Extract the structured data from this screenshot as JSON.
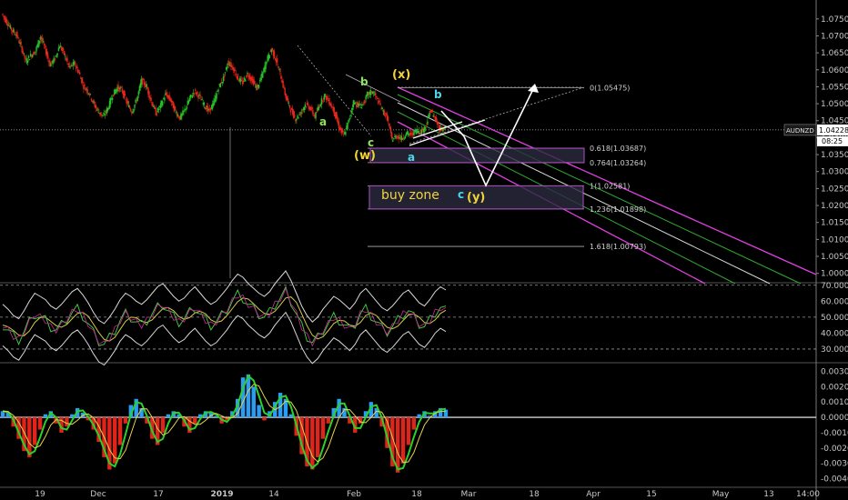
{
  "symbol": "AUDNZD",
  "price_label": "1.04228",
  "countdown_label": "08:25",
  "colors": {
    "background": "#000000",
    "bull": "#26c226",
    "bear": "#e8261c",
    "channel": "#e040e0",
    "inner_green": "#2fa82f",
    "fib_line": "#b0b0b0",
    "zone_fill": "#2a2a40",
    "zone_border": "#b050c0",
    "wave_yellow": "#f2d43a",
    "wave_green": "#8fe05a",
    "wave_cyan": "#4ad8e8"
  },
  "annotations": {
    "wave_x": "(x)",
    "wave_w": "(w)",
    "wave_y": "(y)",
    "wave_a1": "a",
    "wave_b1": "b",
    "wave_c1": "c",
    "wave_a2": "a",
    "wave_b2": "b",
    "wave_c2": "c",
    "buy_zone": "buy zone"
  },
  "chart_data": [
    {
      "type": "line",
      "title": "",
      "symbol": "AUDNZD",
      "ylim": [
        0.9975,
        1.0795
      ],
      "y_ticks": [
        "1.07500",
        "1.07000",
        "1.06500",
        "1.06000",
        "1.05500",
        "1.05000",
        "1.04500",
        "1.04000",
        "1.03500",
        "1.03000",
        "1.02500",
        "1.02000",
        "1.01500",
        "1.01000",
        "1.00500",
        "1.00000"
      ],
      "y_tick_values": [
        1.075,
        1.07,
        1.065,
        1.06,
        1.055,
        1.05,
        1.045,
        1.04,
        1.035,
        1.03,
        1.025,
        1.02,
        1.015,
        1.01,
        1.005,
        1.0
      ],
      "x_ticks": [
        "19",
        "Dec",
        "17",
        "2019",
        "14",
        "Feb",
        "18",
        "Mar",
        "18",
        "Apr",
        "15",
        "May",
        "13",
        "14:00"
      ],
      "series": [
        {
          "values": [
            1.0765,
            1.0742,
            1.0718,
            1.0705,
            1.0668,
            1.0625,
            1.0642,
            1.0655,
            1.0698,
            1.0662,
            1.0615,
            1.0632,
            1.0672,
            1.0645,
            1.0606,
            1.0618,
            1.0592,
            1.0551,
            1.0535,
            1.0502,
            1.0478,
            1.0462,
            1.0486,
            1.0525,
            1.0548,
            1.0538,
            1.0502,
            1.0476,
            1.0512,
            1.0568,
            1.0552,
            1.0508,
            1.0472,
            1.0495,
            1.0528,
            1.0512,
            1.0478,
            1.0458,
            1.0482,
            1.0515,
            1.0536,
            1.0522,
            1.0496,
            1.0478,
            1.0502,
            1.0548,
            1.0575,
            1.0622,
            1.0606,
            1.0574,
            1.0562,
            1.0588,
            1.0568,
            1.0545,
            1.0582,
            1.0628,
            1.0662,
            1.0626,
            1.0578,
            1.0518,
            1.0482,
            1.0455,
            1.0472,
            1.0498,
            1.0488,
            1.0462,
            1.0498,
            1.0525,
            1.0505,
            1.0478,
            1.0432,
            1.0405,
            1.0448,
            1.0505,
            1.0495,
            1.0498,
            1.0528,
            1.0536,
            1.0512,
            1.0482,
            1.0458,
            1.0395,
            1.0405,
            1.0398,
            1.0412,
            1.0408,
            1.0422,
            1.0418,
            1.0432,
            1.0482,
            1.0452,
            1.0425,
            1.0428
          ]
        }
      ],
      "fibonacci": [
        {
          "ratio": "0",
          "label": "0(1.05475)",
          "value": 1.05475
        },
        {
          "ratio": "0.618",
          "label": "0.618(1.03687)",
          "value": 1.03687
        },
        {
          "ratio": "0.764",
          "label": "0.764(1.03264)",
          "value": 1.03264
        },
        {
          "ratio": "1",
          "label": "1(1.02581)",
          "value": 1.02581
        },
        {
          "ratio": "1.236",
          "label": "1.236(1.01898)",
          "value": 1.01898
        },
        {
          "ratio": "1.618",
          "label": "1.618(1.00793)",
          "value": 1.00793
        }
      ],
      "last_price": 1.04228,
      "grid": false,
      "legend": "none"
    },
    {
      "type": "line",
      "title": "",
      "ylim": [
        22,
        71
      ],
      "y_ticks": [
        "70.0000",
        "60.0000",
        "50.0000",
        "40.0000",
        "30.0000"
      ],
      "y_tick_values": [
        70,
        60,
        50,
        40,
        30
      ],
      "dashed_levels": [
        70,
        50,
        30
      ],
      "series": [
        {
          "values": [
            45,
            42,
            38,
            36,
            41,
            47,
            52,
            50,
            48,
            44,
            42,
            45,
            49,
            53,
            55,
            51,
            46,
            40,
            35,
            33,
            37,
            42,
            48,
            52,
            50,
            47,
            45,
            48,
            52,
            56,
            58,
            54,
            50,
            47,
            49,
            53,
            56,
            52,
            48,
            45,
            47,
            51,
            55,
            60,
            64,
            62,
            58,
            55,
            52,
            50,
            53,
            58,
            62,
            66,
            60,
            52,
            44,
            38,
            34,
            37,
            42,
            46,
            50,
            48,
            45,
            42,
            46,
            52,
            55,
            51,
            47,
            43,
            41,
            44,
            48,
            52,
            54,
            50,
            46,
            44,
            48,
            53,
            56,
            54
          ]
        }
      ]
    },
    {
      "type": "bar",
      "title": "",
      "ylim": [
        -0.0045,
        0.0035
      ],
      "y_ticks": [
        "0.0030",
        "0.0020",
        "0.0010",
        "0.0000",
        "-0.0010",
        "-0.0020",
        "-0.0030",
        "-0.0040"
      ],
      "y_tick_values": [
        0.003,
        0.002,
        0.001,
        0,
        -0.001,
        -0.002,
        -0.003,
        -0.004
      ],
      "values": [
        0.0004,
        0.0003,
        -0.0006,
        -0.0014,
        -0.0022,
        -0.0026,
        -0.0018,
        -0.0008,
        0.0002,
        0.0004,
        -0.0004,
        -0.001,
        -0.0006,
        0.0002,
        0.0006,
        0.0003,
        -0.0002,
        -0.0008,
        -0.0016,
        -0.0026,
        -0.0034,
        -0.003,
        -0.0018,
        -0.0004,
        0.0008,
        0.0012,
        0.0006,
        -0.0004,
        -0.0014,
        -0.0018,
        -0.001,
        0.0002,
        0.0004,
        0.0002,
        -0.0006,
        -0.001,
        -0.0004,
        0.0002,
        0.0004,
        0.0003,
        0.0001,
        -0.0004,
        -0.0002,
        0.0004,
        0.0012,
        0.0026,
        0.0028,
        0.002,
        0.0008,
        -0.0002,
        0.0004,
        0.001,
        0.0016,
        0.0012,
        0.0002,
        -0.0012,
        -0.0024,
        -0.0032,
        -0.0034,
        -0.0026,
        -0.0014,
        -0.0004,
        0.0006,
        0.0012,
        0.0006,
        -0.0004,
        -0.001,
        -0.0004,
        0.0004,
        0.001,
        0.0006,
        -0.0006,
        -0.002,
        -0.0032,
        -0.0036,
        -0.003,
        -0.0018,
        -0.0008,
        0.0002,
        0.0004,
        0.0001,
        0.0004,
        0.0006,
        0.0005
      ]
    }
  ]
}
